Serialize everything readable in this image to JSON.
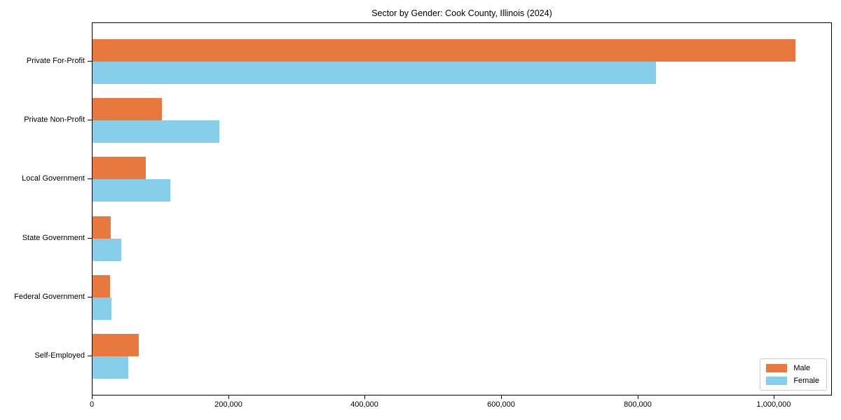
{
  "title": "Sector by Gender: Cook County, Illinois (2024)",
  "chart_data": {
    "type": "bar",
    "orientation": "horizontal",
    "title": "Sector by Gender: Cook County, Illinois (2024)",
    "xlabel": "",
    "ylabel": "",
    "categories": [
      "Private For-Profit",
      "Private Non-Profit",
      "Local Government",
      "State Government",
      "Federal Government",
      "Self-Employed"
    ],
    "series": [
      {
        "name": "Male",
        "color": "#e8793e",
        "values": [
          1033000,
          102000,
          78000,
          27000,
          26000,
          68000
        ]
      },
      {
        "name": "Female",
        "color": "#87ceeb",
        "values": [
          828000,
          186000,
          114000,
          42000,
          27500,
          53000
        ]
      }
    ],
    "xlim": [
      0,
      1085000
    ],
    "xticks": [
      0,
      200000,
      400000,
      600000,
      800000,
      1000000
    ],
    "xtick_labels": [
      "0",
      "200,000",
      "400,000",
      "600,000",
      "800,000",
      "1,000,000"
    ],
    "grid": false,
    "legend_position": "lower right"
  },
  "legend": {
    "items": [
      {
        "label": "Male",
        "color": "#e8793e"
      },
      {
        "label": "Female",
        "color": "#87ceeb"
      }
    ]
  }
}
